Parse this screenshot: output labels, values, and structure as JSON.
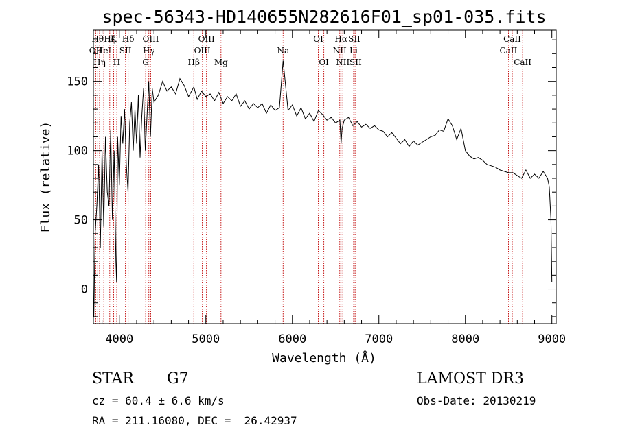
{
  "chart_data": {
    "type": "line",
    "title": "spec-56343-HD140655N282616F01_sp01-035.fits",
    "xlabel": "Wavelength (Å)",
    "ylabel": "Flux (relative)",
    "xlim": [
      3700,
      9050
    ],
    "ylim": [
      -25,
      187
    ],
    "xticks": [
      4000,
      5000,
      6000,
      7000,
      8000,
      9000
    ],
    "yticks": [
      0,
      50,
      100,
      150
    ],
    "grid": false,
    "series": [
      {
        "name": "flux",
        "color": "#000000",
        "x": [
          3705,
          3720,
          3740,
          3760,
          3780,
          3800,
          3820,
          3840,
          3860,
          3880,
          3900,
          3920,
          3940,
          3960,
          3968,
          3980,
          4000,
          4020,
          4040,
          4060,
          4080,
          4101,
          4120,
          4140,
          4160,
          4180,
          4200,
          4220,
          4240,
          4260,
          4280,
          4300,
          4320,
          4340,
          4360,
          4380,
          4400,
          4450,
          4500,
          4550,
          4600,
          4650,
          4700,
          4750,
          4800,
          4861,
          4900,
          4950,
          5000,
          5050,
          5100,
          5150,
          5200,
          5250,
          5300,
          5350,
          5400,
          5450,
          5500,
          5550,
          5600,
          5650,
          5700,
          5750,
          5800,
          5850,
          5893,
          5950,
          6000,
          6050,
          6100,
          6150,
          6200,
          6250,
          6300,
          6350,
          6400,
          6450,
          6500,
          6550,
          6563,
          6575,
          6600,
          6650,
          6700,
          6750,
          6800,
          6850,
          6900,
          6950,
          7000,
          7050,
          7100,
          7150,
          7200,
          7250,
          7300,
          7350,
          7400,
          7450,
          7500,
          7550,
          7600,
          7650,
          7700,
          7750,
          7800,
          7850,
          7900,
          7950,
          8000,
          8050,
          8100,
          8150,
          8200,
          8250,
          8300,
          8350,
          8400,
          8450,
          8500,
          8550,
          8600,
          8650,
          8700,
          8750,
          8800,
          8850,
          8900,
          8950,
          8970,
          8990,
          9000
        ],
        "y": [
          -20,
          40,
          60,
          90,
          30,
          100,
          45,
          110,
          70,
          60,
          115,
          50,
          100,
          20,
          5,
          110,
          75,
          125,
          105,
          130,
          90,
          70,
          120,
          135,
          100,
          130,
          105,
          140,
          95,
          125,
          145,
          100,
          125,
          150,
          110,
          145,
          135,
          140,
          150,
          143,
          146,
          141,
          152,
          147,
          139,
          146,
          137,
          143,
          139,
          141,
          136,
          142,
          134,
          139,
          136,
          141,
          132,
          136,
          130,
          134,
          131,
          134,
          127,
          133,
          129,
          131,
          165,
          129,
          133,
          125,
          131,
          123,
          127,
          121,
          129,
          126,
          122,
          124,
          120,
          122,
          105,
          116,
          122,
          124,
          118,
          121,
          117,
          119,
          116,
          118,
          115,
          114,
          110,
          113,
          109,
          105,
          108,
          103,
          107,
          104,
          106,
          108,
          110,
          111,
          115,
          114,
          123,
          118,
          108,
          116,
          100,
          96,
          94,
          95,
          93,
          90,
          89,
          88,
          86,
          85,
          84,
          84,
          82,
          80,
          86,
          80,
          83,
          80,
          85,
          80,
          74,
          50,
          5
        ]
      }
    ],
    "line_markers": [
      {
        "wavelength": 3727,
        "label": "OII",
        "row": 2
      },
      {
        "wavelength": 3750,
        "label": "Hθ",
        "row": 1
      },
      {
        "wavelength": 3771,
        "label": "Hη",
        "row": 3
      },
      {
        "wavelength": 3820,
        "label": "HeI",
        "row": 2
      },
      {
        "wavelength": 3889,
        "label": "Hζ",
        "row": 1
      },
      {
        "wavelength": 3934,
        "label": "K",
        "row": 1
      },
      {
        "wavelength": 3970,
        "label": "H",
        "row": 3
      },
      {
        "wavelength": 4070,
        "label": "SII",
        "row": 2
      },
      {
        "wavelength": 4102,
        "label": "Hδ",
        "row": 1
      },
      {
        "wavelength": 4304,
        "label": "G",
        "row": 3
      },
      {
        "wavelength": 4341,
        "label": "Hγ",
        "row": 2
      },
      {
        "wavelength": 4363,
        "label": "OIII",
        "row": 1
      },
      {
        "wavelength": 4861,
        "label": "Hβ",
        "row": 3
      },
      {
        "wavelength": 4959,
        "label": "OIII",
        "row": 2
      },
      {
        "wavelength": 5007,
        "label": "OIII",
        "row": 1
      },
      {
        "wavelength": 5175,
        "label": "Mg",
        "row": 3
      },
      {
        "wavelength": 5893,
        "label": "Na",
        "row": 2
      },
      {
        "wavelength": 6300,
        "label": "OI",
        "row": 1
      },
      {
        "wavelength": 6364,
        "label": "OI",
        "row": 3
      },
      {
        "wavelength": 6548,
        "label": "NII",
        "row": 2
      },
      {
        "wavelength": 6563,
        "label": "Hα",
        "row": 1
      },
      {
        "wavelength": 6583,
        "label": "NII",
        "row": 3
      },
      {
        "wavelength": 6708,
        "label": "Li",
        "row": 2
      },
      {
        "wavelength": 6716,
        "label": "SII",
        "row": 1
      },
      {
        "wavelength": 6731,
        "label": "SII",
        "row": 3
      },
      {
        "wavelength": 8498,
        "label": "CaII",
        "row": 2
      },
      {
        "wavelength": 8542,
        "label": "CaII",
        "row": 1
      },
      {
        "wavelength": 8662,
        "label": "CaII",
        "row": 3
      }
    ]
  },
  "info": {
    "class": "STAR",
    "subclass": "G7",
    "survey": "LAMOST DR3",
    "cz": "cz = 60.4 ± 6.6 km/s",
    "obs_date": "Obs-Date: 20130219",
    "coords": "RA = 211.16080, DEC =  26.42937"
  }
}
